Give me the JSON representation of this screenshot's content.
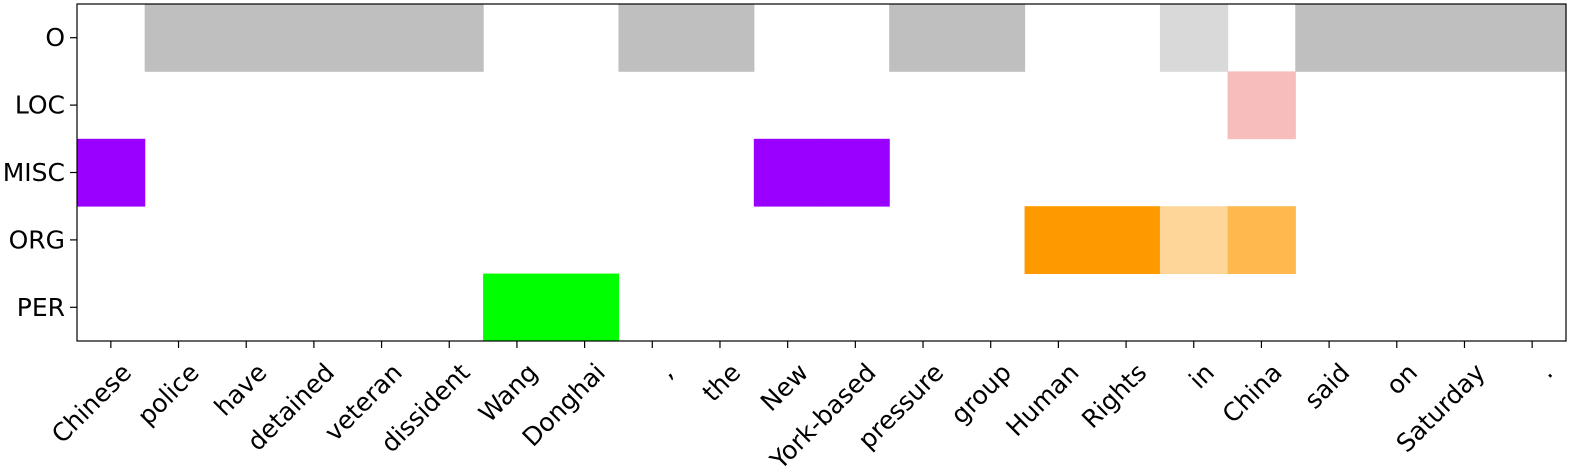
{
  "chart_data": {
    "type": "heatmap",
    "title": "",
    "xlabel": "",
    "ylabel": "",
    "x_tokens": [
      "Chinese",
      "police",
      "have",
      "detained",
      "veteran",
      "dissident",
      "Wang",
      "Donghai",
      ",",
      "the",
      "New",
      "York-based",
      "pressure",
      "group",
      "Human",
      "Rights",
      "in",
      "China",
      "said",
      "on",
      "Saturday",
      "."
    ],
    "y_labels": [
      "O",
      "LOC",
      "MISC",
      "ORG",
      "PER"
    ],
    "colors": {
      "O": "#bfbfbf",
      "LOC": "#f4a6a6",
      "MISC": "#9a00ff",
      "ORG": "#ff9900",
      "PER": "#00ff00"
    },
    "values": [
      [
        0,
        1,
        1,
        1,
        1,
        1,
        0,
        0,
        1,
        1,
        0,
        0,
        1,
        1,
        0,
        0,
        0.6,
        0,
        1,
        1,
        1,
        1
      ],
      [
        0,
        0,
        0,
        0,
        0,
        0,
        0,
        0,
        0,
        0,
        0,
        0,
        0,
        0,
        0,
        0,
        0,
        0.75,
        0,
        0,
        0,
        0
      ],
      [
        1,
        0,
        0,
        0,
        0,
        0,
        0,
        0,
        0,
        0,
        1,
        1,
        0,
        0,
        0,
        0,
        0,
        0,
        0,
        0,
        0,
        0
      ],
      [
        0,
        0,
        0,
        0,
        0,
        0,
        0,
        0,
        0,
        0,
        0,
        0,
        0,
        0,
        1,
        1,
        0.4,
        0.7,
        0,
        0,
        0,
        0
      ],
      [
        0,
        0,
        0,
        0,
        0,
        0,
        1,
        1,
        0,
        0,
        0,
        0,
        0,
        0,
        0,
        0,
        0,
        0,
        0,
        0,
        0,
        0
      ]
    ],
    "grid": false
  }
}
